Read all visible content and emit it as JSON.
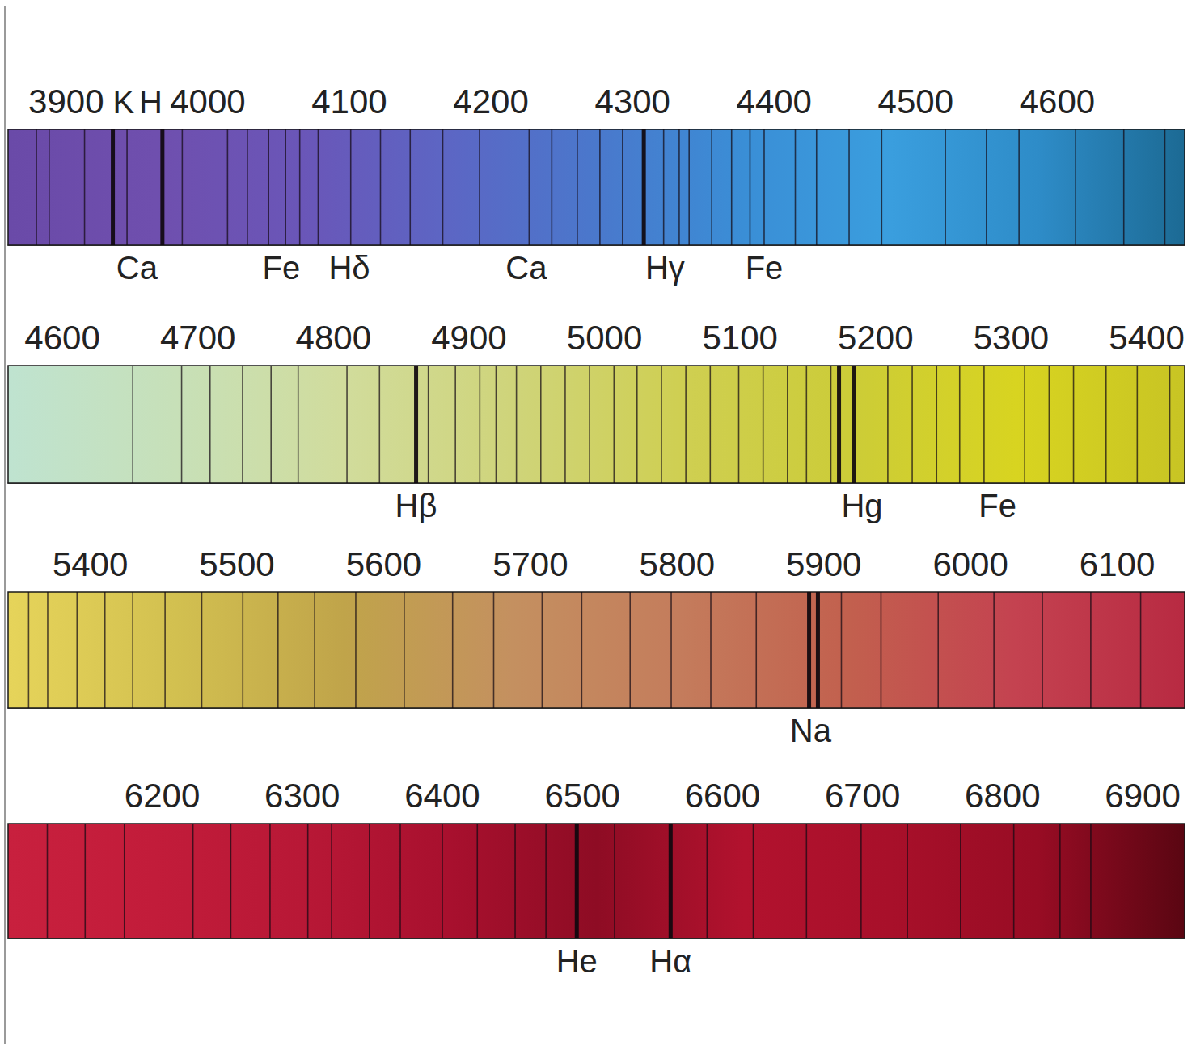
{
  "chart_data": [
    {
      "type": "spectrum",
      "xlim": [
        3859,
        4690
      ],
      "xticks": [
        3900,
        4000,
        4100,
        4200,
        4300,
        4400,
        4500,
        4600
      ],
      "colors": [
        "#6a4aa8",
        "#6f4fae",
        "#6a56b8",
        "#5c66c4",
        "#4a78cc",
        "#3a8ed6",
        "#3a9ede",
        "#2e8cc8",
        "#1c6a94"
      ],
      "strong_lines": [
        3933,
        3968,
        4308
      ],
      "lines": [
        3879,
        3888,
        3913,
        3943,
        3982,
        4014,
        4028,
        4043,
        4055,
        4065,
        4078,
        4101,
        4122,
        4143,
        4166,
        4192,
        4227,
        4243,
        4261,
        4277,
        4293,
        4322,
        4333,
        4340,
        4356,
        4370,
        4383,
        4393,
        4415,
        4430,
        4453,
        4476,
        4521,
        4550,
        4573,
        4613,
        4647,
        4676
      ],
      "top_annotations": [
        {
          "text": "K",
          "x": 3933
        },
        {
          "text": "H",
          "x": 3968
        }
      ],
      "annotations": [
        {
          "text": "Ca",
          "x": 3950
        },
        {
          "text": "Fe",
          "x": 4052
        },
        {
          "text": "Hδ",
          "x": 4100
        },
        {
          "text": "Ca",
          "x": 4225
        },
        {
          "text": "Hγ",
          "x": 4323
        },
        {
          "text": "Fe",
          "x": 4393
        }
      ]
    },
    {
      "type": "spectrum",
      "xlim": [
        4560,
        5428
      ],
      "xticks": [
        4600,
        4700,
        4800,
        4900,
        5000,
        5100,
        5200,
        5300,
        5400
      ],
      "colors": [
        "#bfe3d0",
        "#c7e0b8",
        "#d1dc9c",
        "#cfd47a",
        "#cfcf52",
        "#cccc38",
        "#d8d420",
        "#c8c424"
      ],
      "strong_lines": [
        4861,
        5173,
        5184
      ],
      "lines": [
        4652,
        4688,
        4709,
        4733,
        4754,
        4774,
        4810,
        4834,
        4870,
        4890,
        4908,
        4920,
        4935,
        4953,
        4971,
        4989,
        5007,
        5024,
        5042,
        5060,
        5078,
        5099,
        5117,
        5135,
        5149,
        5167,
        5209,
        5227,
        5245,
        5262,
        5280,
        5310,
        5328,
        5346,
        5370,
        5393,
        5417
      ],
      "top_annotations": [],
      "annotations": [
        {
          "text": "Hβ",
          "x": 4861
        },
        {
          "text": "Hg",
          "x": 5190
        },
        {
          "text": "Fe",
          "x": 5290
        }
      ]
    },
    {
      "type": "spectrum",
      "xlim": [
        5344,
        6146
      ],
      "xticks": [
        5400,
        5500,
        5600,
        5700,
        5800,
        5900,
        6000,
        6100
      ],
      "colors": [
        "#e6d45a",
        "#d2c050",
        "#c0a44a",
        "#c49060",
        "#c47c5c",
        "#c2604e",
        "#c44250",
        "#b82a42"
      ],
      "strong_lines": [
        5890,
        5896
      ],
      "lines": [
        5358,
        5371,
        5391,
        5410,
        5429,
        5451,
        5476,
        5504,
        5528,
        5553,
        5581,
        5614,
        5647,
        5675,
        5708,
        5735,
        5768,
        5796,
        5823,
        5854,
        5912,
        5939,
        5978,
        6016,
        6049,
        6082,
        6116
      ],
      "top_annotations": [],
      "annotations": [
        {
          "text": "Na",
          "x": 5891
        }
      ]
    },
    {
      "type": "spectrum",
      "xlim": [
        6090,
        6930
      ],
      "xticks": [
        6200,
        6300,
        6400,
        6500,
        6600,
        6700,
        6800,
        6900
      ],
      "colors": [
        "#c8203e",
        "#c21c3a",
        "#b81836",
        "#a8102e",
        "#8e0c24",
        "#b2122e",
        "#a8102a",
        "#980c24",
        "#5a0612"
      ],
      "strong_lines": [
        6496,
        6563
      ],
      "lines": [
        6118,
        6145,
        6173,
        6222,
        6249,
        6277,
        6304,
        6321,
        6348,
        6370,
        6400,
        6425,
        6452,
        6474,
        6523,
        6589,
        6622,
        6660,
        6699,
        6732,
        6770,
        6808,
        6841,
        6863
      ],
      "top_annotations": [],
      "annotations": [
        {
          "text": "He",
          "x": 6496
        },
        {
          "text": "Hα",
          "x": 6563
        }
      ]
    }
  ]
}
